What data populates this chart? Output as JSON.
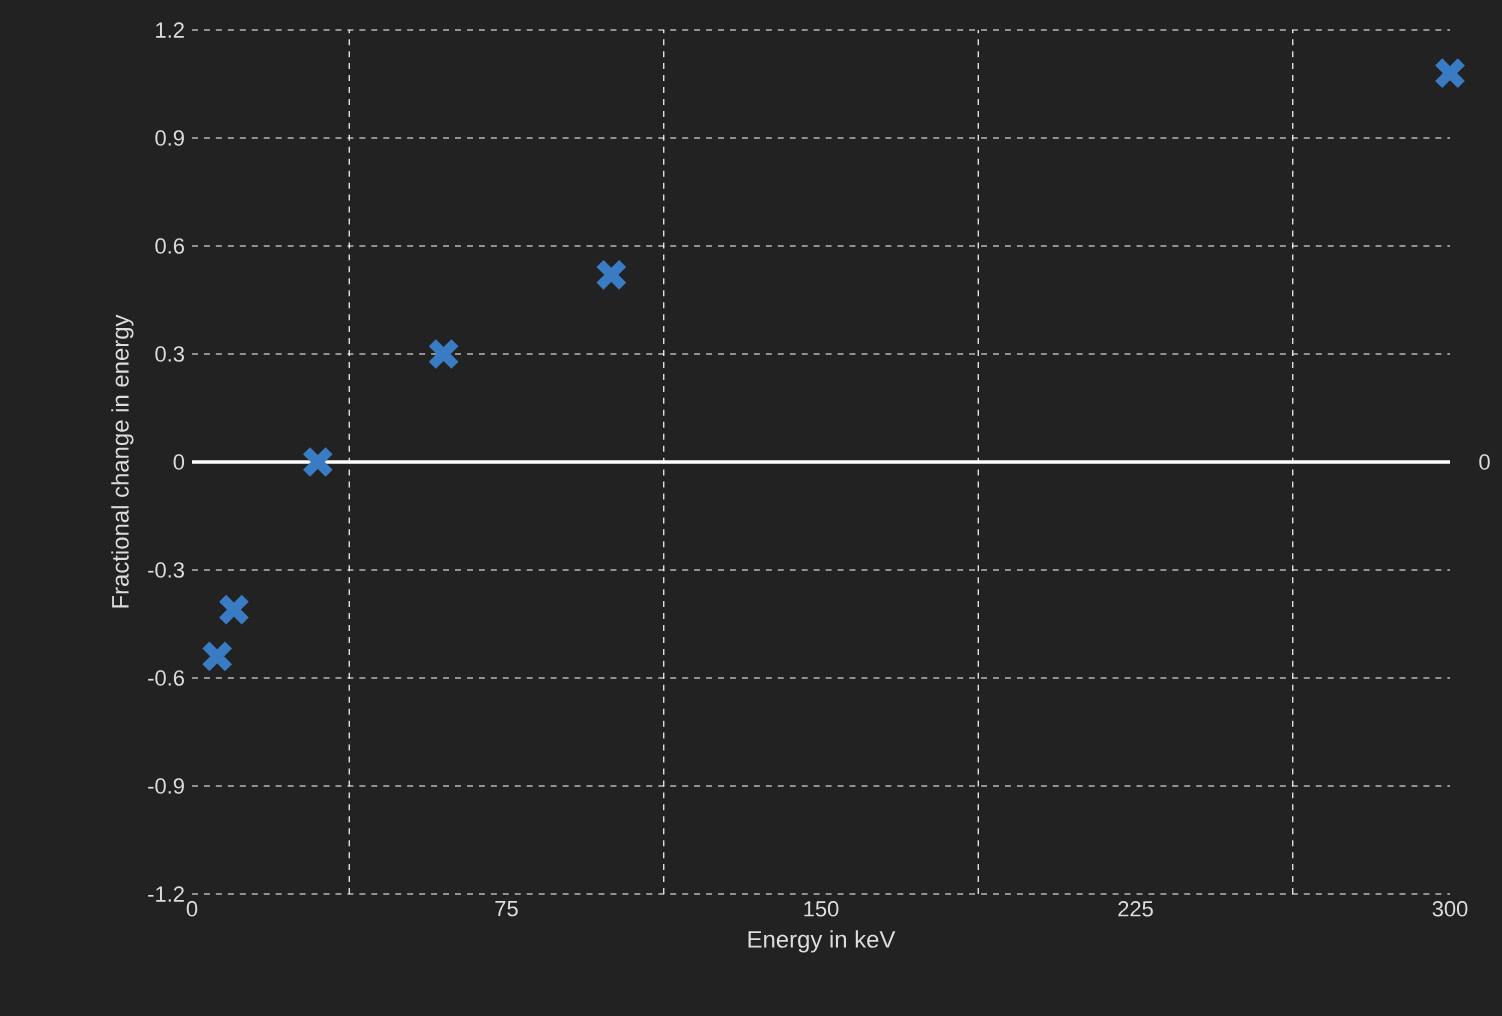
{
  "chart_data": {
    "type": "scatter",
    "xlabel": "Energy in keV",
    "ylabel": "Fractional change in energy",
    "x": [
      6,
      10,
      30,
      60,
      100,
      300
    ],
    "series": [
      {
        "color": "#3a7cc4",
        "values": [
          -0.54,
          -0.41,
          0,
          0.3,
          0.52,
          1.08
        ]
      }
    ],
    "marker": "cross",
    "xlim": [
      0,
      300
    ],
    "xticks": [
      0,
      75,
      150,
      225,
      300
    ],
    "ylim": [
      -1.2,
      1.2
    ],
    "yticks": [
      {
        "value": -1.2,
        "label": "-1.2"
      },
      {
        "value": -0.9,
        "label": "-0.9"
      },
      {
        "value": -0.6,
        "label": "-0.6"
      },
      {
        "value": -0.3,
        "label": "-0.3"
      },
      {
        "value": 0,
        "label": "0"
      },
      {
        "value": 0.3,
        "label": "0.3"
      },
      {
        "value": 0.6,
        "label": "0.6"
      },
      {
        "value": 0.9,
        "label": "0.9"
      },
      {
        "value": 1.2,
        "label": "1.2"
      }
    ],
    "grid": true,
    "ref_lines": [
      {
        "axis": "y",
        "value": 0,
        "label": "0",
        "color": "#ffffff"
      }
    ]
  }
}
